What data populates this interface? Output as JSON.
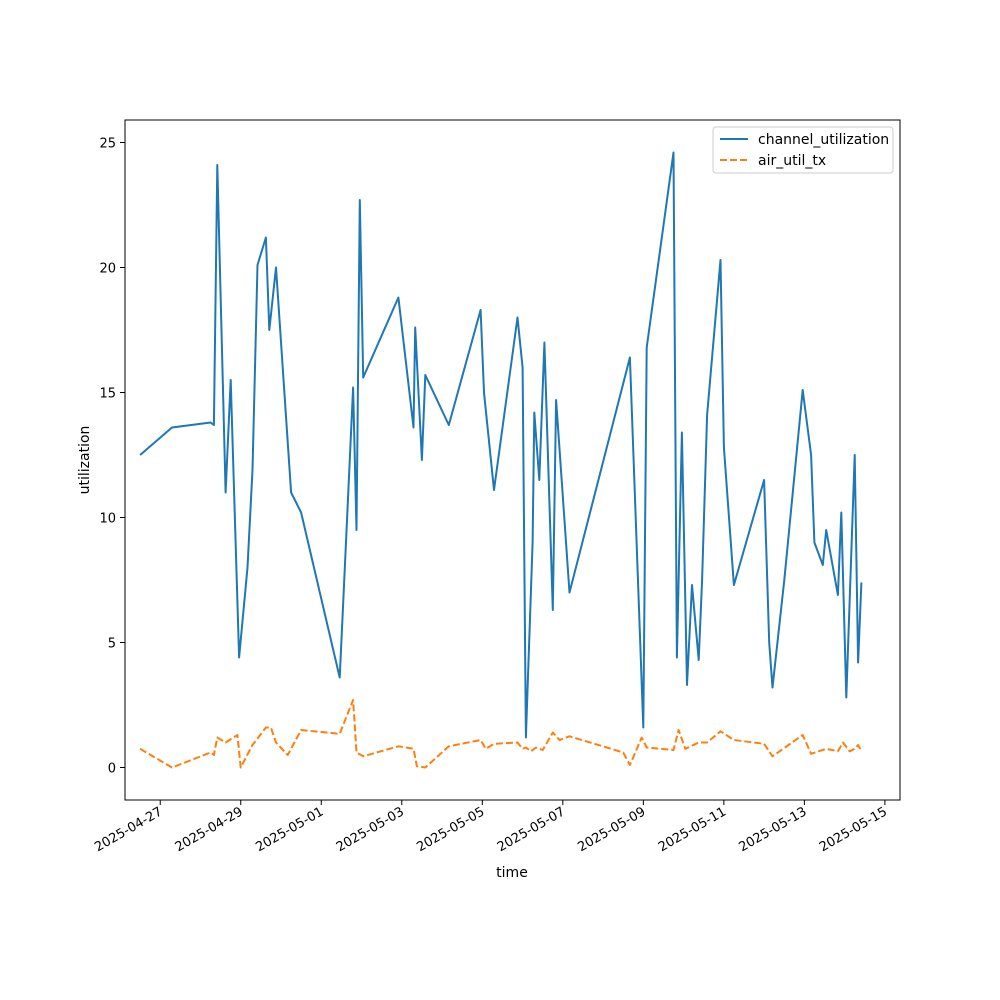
{
  "chart_data": {
    "type": "line",
    "xlabel": "time",
    "ylabel": "utilization",
    "xlim": [
      "2025-04-26 03:00",
      "2025-05-15 09:00"
    ],
    "ylim": [
      -1.3,
      25.9
    ],
    "x_ticks": [
      "2025-04-27",
      "2025-04-29",
      "2025-05-01",
      "2025-05-03",
      "2025-05-05",
      "2025-05-07",
      "2025-05-09",
      "2025-05-11",
      "2025-05-13",
      "2025-05-15"
    ],
    "y_ticks": [
      0,
      5,
      10,
      15,
      20,
      25
    ],
    "grid": false,
    "legend_position": "top-right",
    "series": [
      {
        "name": "channel_utilization",
        "color": "#1f77b4",
        "dash": "solid",
        "points": [
          [
            "2025-04-26 12:00",
            12.5
          ],
          [
            "2025-04-27 07:00",
            13.6
          ],
          [
            "2025-04-28 06:00",
            13.8
          ],
          [
            "2025-04-28 08:00",
            13.7
          ],
          [
            "2025-04-28 10:00",
            24.1
          ],
          [
            "2025-04-28 15:00",
            11.0
          ],
          [
            "2025-04-28 18:00",
            15.5
          ],
          [
            "2025-04-28 23:00",
            4.4
          ],
          [
            "2025-04-29 04:00",
            8.0
          ],
          [
            "2025-04-29 07:00",
            11.9
          ],
          [
            "2025-04-29 10:00",
            20.1
          ],
          [
            "2025-04-29 15:00",
            21.2
          ],
          [
            "2025-04-29 17:00",
            17.5
          ],
          [
            "2025-04-29 21:00",
            20.0
          ],
          [
            "2025-04-30 06:00",
            11.0
          ],
          [
            "2025-04-30 12:00",
            10.2
          ],
          [
            "2025-05-01 11:00",
            3.6
          ],
          [
            "2025-05-01 13:00",
            6.5
          ],
          [
            "2025-05-01 19:00",
            15.2
          ],
          [
            "2025-05-01 21:00",
            9.5
          ],
          [
            "2025-05-01 23:00",
            22.7
          ],
          [
            "2025-05-02 01:00",
            15.6
          ],
          [
            "2025-05-02 22:00",
            18.8
          ],
          [
            "2025-05-03 07:00",
            13.6
          ],
          [
            "2025-05-03 08:00",
            17.6
          ],
          [
            "2025-05-03 12:00",
            12.3
          ],
          [
            "2025-05-03 14:00",
            15.7
          ],
          [
            "2025-05-04 04:00",
            13.7
          ],
          [
            "2025-05-04 23:00",
            18.3
          ],
          [
            "2025-05-05 01:00",
            15.0
          ],
          [
            "2025-05-05 07:00",
            11.1
          ],
          [
            "2025-05-05 21:00",
            18.0
          ],
          [
            "2025-05-06 00:00",
            16.0
          ],
          [
            "2025-05-06 02:00",
            1.2
          ],
          [
            "2025-05-06 06:00",
            9.0
          ],
          [
            "2025-05-06 07:00",
            14.2
          ],
          [
            "2025-05-06 10:00",
            11.5
          ],
          [
            "2025-05-06 13:00",
            17.0
          ],
          [
            "2025-05-06 18:00",
            6.3
          ],
          [
            "2025-05-06 20:00",
            14.7
          ],
          [
            "2025-05-07 04:00",
            7.0
          ],
          [
            "2025-05-08 16:00",
            16.4
          ],
          [
            "2025-05-09 00:00",
            1.6
          ],
          [
            "2025-05-09 02:00",
            16.8
          ],
          [
            "2025-05-09 18:00",
            24.6
          ],
          [
            "2025-05-09 20:00",
            4.4
          ],
          [
            "2025-05-09 23:00",
            13.4
          ],
          [
            "2025-05-10 02:00",
            3.3
          ],
          [
            "2025-05-10 05:00",
            7.3
          ],
          [
            "2025-05-10 09:00",
            4.3
          ],
          [
            "2025-05-10 11:00",
            7.5
          ],
          [
            "2025-05-10 14:00",
            14.1
          ],
          [
            "2025-05-10 22:00",
            20.3
          ],
          [
            "2025-05-11 00:00",
            12.8
          ],
          [
            "2025-05-11 06:00",
            7.3
          ],
          [
            "2025-05-12 00:00",
            11.5
          ],
          [
            "2025-05-12 03:00",
            5.0
          ],
          [
            "2025-05-12 05:00",
            3.2
          ],
          [
            "2025-05-12 12:00",
            7.5
          ],
          [
            "2025-05-12 23:00",
            15.1
          ],
          [
            "2025-05-13 04:00",
            12.5
          ],
          [
            "2025-05-13 06:00",
            9.0
          ],
          [
            "2025-05-13 11:00",
            8.1
          ],
          [
            "2025-05-13 13:00",
            9.5
          ],
          [
            "2025-05-13 20:00",
            6.9
          ],
          [
            "2025-05-13 22:00",
            10.2
          ],
          [
            "2025-05-14 01:00",
            2.8
          ],
          [
            "2025-05-14 06:00",
            12.5
          ],
          [
            "2025-05-14 08:00",
            4.2
          ],
          [
            "2025-05-14 10:00",
            7.4
          ]
        ]
      },
      {
        "name": "air_util_tx",
        "color": "#ff7f0e",
        "dash": "dashed",
        "points": [
          [
            "2025-04-26 12:00",
            0.75
          ],
          [
            "2025-04-27 07:00",
            0.0
          ],
          [
            "2025-04-28 06:00",
            0.6
          ],
          [
            "2025-04-28 08:00",
            0.5
          ],
          [
            "2025-04-28 10:00",
            1.2
          ],
          [
            "2025-04-28 15:00",
            1.0
          ],
          [
            "2025-04-28 22:00",
            1.3
          ],
          [
            "2025-04-29 00:00",
            0.0
          ],
          [
            "2025-04-29 07:00",
            0.9
          ],
          [
            "2025-04-29 15:00",
            1.6
          ],
          [
            "2025-04-29 18:00",
            1.6
          ],
          [
            "2025-04-29 21:00",
            1.0
          ],
          [
            "2025-04-30 04:00",
            0.5
          ],
          [
            "2025-04-30 12:00",
            1.5
          ],
          [
            "2025-05-01 11:00",
            1.35
          ],
          [
            "2025-05-01 19:00",
            2.7
          ],
          [
            "2025-05-01 21:00",
            0.6
          ],
          [
            "2025-05-02 01:00",
            0.45
          ],
          [
            "2025-05-02 22:00",
            0.85
          ],
          [
            "2025-05-03 07:00",
            0.75
          ],
          [
            "2025-05-03 09:00",
            0.05
          ],
          [
            "2025-05-03 14:00",
            0.0
          ],
          [
            "2025-05-04 04:00",
            0.85
          ],
          [
            "2025-05-04 23:00",
            1.1
          ],
          [
            "2025-05-05 02:00",
            0.75
          ],
          [
            "2025-05-05 07:00",
            0.95
          ],
          [
            "2025-05-05 21:00",
            1.0
          ],
          [
            "2025-05-06 00:00",
            0.75
          ],
          [
            "2025-05-06 02:00",
            0.8
          ],
          [
            "2025-05-06 05:00",
            0.65
          ],
          [
            "2025-05-06 08:00",
            0.8
          ],
          [
            "2025-05-06 12:00",
            0.7
          ],
          [
            "2025-05-06 18:00",
            1.4
          ],
          [
            "2025-05-06 22:00",
            1.1
          ],
          [
            "2025-05-07 04:00",
            1.25
          ],
          [
            "2025-05-08 12:00",
            0.6
          ],
          [
            "2025-05-08 16:00",
            0.1
          ],
          [
            "2025-05-08 23:00",
            1.2
          ],
          [
            "2025-05-09 02:00",
            0.8
          ],
          [
            "2025-05-09 18:00",
            0.7
          ],
          [
            "2025-05-09 21:00",
            1.5
          ],
          [
            "2025-05-10 01:00",
            0.75
          ],
          [
            "2025-05-10 09:00",
            1.0
          ],
          [
            "2025-05-10 14:00",
            1.0
          ],
          [
            "2025-05-10 22:00",
            1.45
          ],
          [
            "2025-05-11 06:00",
            1.1
          ],
          [
            "2025-05-12 00:00",
            0.95
          ],
          [
            "2025-05-12 05:00",
            0.45
          ],
          [
            "2025-05-12 23:00",
            1.3
          ],
          [
            "2025-05-13 04:00",
            0.55
          ],
          [
            "2025-05-13 13:00",
            0.75
          ],
          [
            "2025-05-13 20:00",
            0.65
          ],
          [
            "2025-05-13 23:00",
            1.0
          ],
          [
            "2025-05-14 03:00",
            0.65
          ],
          [
            "2025-05-14 06:00",
            0.75
          ],
          [
            "2025-05-14 08:00",
            0.9
          ],
          [
            "2025-05-14 10:00",
            0.65
          ]
        ]
      }
    ]
  }
}
